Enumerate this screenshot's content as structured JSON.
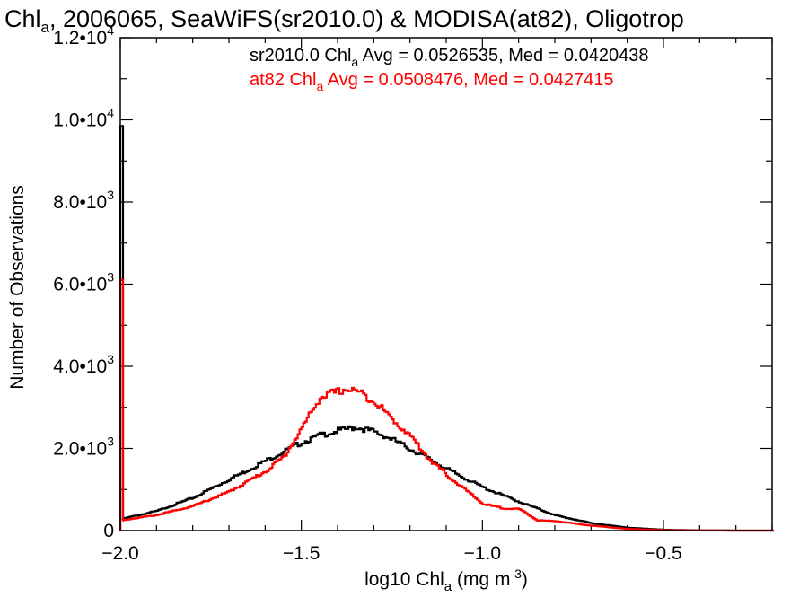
{
  "chart_data": {
    "type": "histogram",
    "title": {
      "pre": "Chl",
      "sub": "a",
      "post": ", 2006065, SeaWiFS(sr2010.0) & MODISA(at82), Oligotrop"
    },
    "xlabel": {
      "pre": "log10 Chl",
      "sub": "a",
      "mid": " (mg m",
      "sup": "-3",
      "post": ")"
    },
    "ylabel": "Number of Observations",
    "xlim": [
      -2.0,
      -0.2
    ],
    "ylim": [
      0,
      12000
    ],
    "x_ticks": [
      {
        "value": -2.0,
        "label": "−2.0"
      },
      {
        "value": -1.5,
        "label": "−1.5"
      },
      {
        "value": -1.0,
        "label": "−1.0"
      },
      {
        "value": -0.5,
        "label": "−0.5"
      }
    ],
    "y_ticks": [
      {
        "value": 0,
        "mant": "0",
        "exp": ""
      },
      {
        "value": 2000,
        "mant": "2.0•10",
        "exp": "3"
      },
      {
        "value": 4000,
        "mant": "4.0•10",
        "exp": "3"
      },
      {
        "value": 6000,
        "mant": "6.0•10",
        "exp": "3"
      },
      {
        "value": 8000,
        "mant": "8.0•10",
        "exp": "3"
      },
      {
        "value": 10000,
        "mant": "1.0•10",
        "exp": "4"
      },
      {
        "value": 12000,
        "mant": "1.2•10",
        "exp": "4"
      }
    ],
    "stats": [
      {
        "name": "sr2010.0",
        "pre": "sr2010.0 Chl",
        "sub": "a",
        "post": " Avg = 0.0526535, Med = 0.0420438",
        "color": "#000000"
      },
      {
        "name": "at82",
        "pre": "at82 Chl",
        "sub": "a",
        "post": " Avg = 0.0508476, Med = 0.0427415",
        "color": "#ff0000"
      }
    ],
    "series": [
      {
        "name": "sr2010.0",
        "color": "#000000",
        "spike": {
          "x": -2.0,
          "y": 9850
        },
        "x": [
          -2.0,
          -1.9,
          -1.8,
          -1.7,
          -1.6,
          -1.5,
          -1.45,
          -1.4,
          -1.35,
          -1.3,
          -1.25,
          -1.2,
          -1.15,
          -1.1,
          -1.0,
          -0.9,
          -0.8,
          -0.7,
          -0.6,
          -0.5,
          -0.4,
          -0.3,
          -0.2
        ],
        "y": [
          280,
          480,
          800,
          1250,
          1700,
          2150,
          2320,
          2430,
          2520,
          2400,
          2220,
          1980,
          1750,
          1500,
          1050,
          700,
          370,
          180,
          70,
          20,
          5,
          0,
          0
        ]
      },
      {
        "name": "at82",
        "color": "#ff0000",
        "spike": {
          "x": -2.0,
          "y": 6100
        },
        "x": [
          -2.0,
          -1.9,
          -1.8,
          -1.7,
          -1.6,
          -1.55,
          -1.5,
          -1.45,
          -1.4,
          -1.38,
          -1.35,
          -1.3,
          -1.25,
          -1.2,
          -1.15,
          -1.1,
          -1.05,
          -1.0,
          -0.95,
          -0.9,
          -0.85,
          -0.8,
          -0.7,
          -0.6,
          -0.5,
          -0.4,
          -0.3,
          -0.2
        ],
        "y": [
          250,
          380,
          600,
          950,
          1450,
          1800,
          2500,
          3250,
          3380,
          3450,
          3400,
          3150,
          2700,
          2300,
          1750,
          1350,
          1000,
          650,
          550,
          520,
          250,
          230,
          120,
          40,
          10,
          3,
          0,
          0
        ]
      }
    ]
  }
}
